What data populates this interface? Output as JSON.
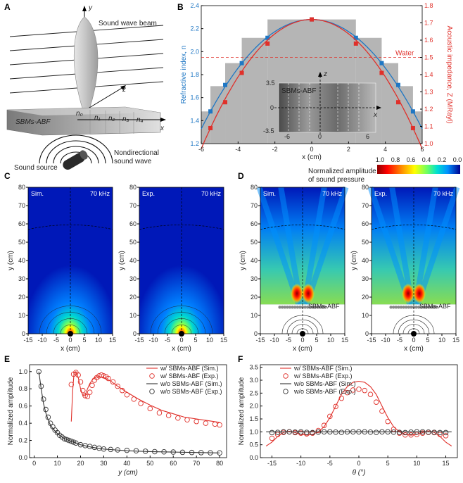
{
  "panels": {
    "A": "A",
    "B": "B",
    "C": "C",
    "D": "D",
    "E": "E",
    "F": "F"
  },
  "schematic": {
    "axis_y": "y",
    "axis_z": "z",
    "axis_x": "x",
    "beam_label": "Sound wave beam",
    "sbm_label": "SBMs-ABF",
    "n_labels": [
      "n₀",
      "n₁",
      "n₂",
      "n₃",
      "n₄"
    ],
    "nondir_label_1": "Nondirectional",
    "nondir_label_2": "sound wave",
    "source_label": "Sound source"
  },
  "colorbar": {
    "title_1": "Normalized amplitude",
    "title_2": "of sound pressure",
    "ticks": [
      "1.0",
      "0.8",
      "0.6",
      "0.4",
      "0.2",
      "0.0"
    ],
    "colors": [
      "#8b0000",
      "#ff0000",
      "#ff8c00",
      "#ffff00",
      "#7cff50",
      "#00e0c0",
      "#00a0ff",
      "#0030d0",
      "#00007a"
    ]
  },
  "map_panels": [
    {
      "id": "c1",
      "tag": "Sim.",
      "freq": "70 kHz",
      "mode": "free"
    },
    {
      "id": "c2",
      "tag": "Exp.",
      "freq": "70 kHz",
      "mode": "free"
    },
    {
      "id": "d1",
      "tag": "Sim.",
      "freq": "70 kHz",
      "mode": "sbm",
      "sbm": "SBMs-ABF"
    },
    {
      "id": "d2",
      "tag": "Exp.",
      "freq": "70 kHz",
      "mode": "sbm",
      "sbm": "SBMs-ABF"
    }
  ],
  "map_axes": {
    "x_label": "x (cm)",
    "y_label": "y (cm)",
    "x_ticks": [
      "-15",
      "-10",
      "-5",
      "0",
      "5",
      "10",
      "15"
    ],
    "y_ticks": [
      "0",
      "10",
      "20",
      "30",
      "40",
      "50",
      "60",
      "70",
      "80"
    ]
  },
  "chart_data": [
    {
      "id": "B",
      "type": "line",
      "xlabel": "x (cm)",
      "ylabel": "Refractive index, n",
      "y2label": "Acoustic impedance, Z (MRayl)",
      "xlim": [
        -6,
        6
      ],
      "ylim": [
        1.2,
        2.4
      ],
      "y2lim": [
        1.0,
        1.8
      ],
      "x_ticks": [
        -6,
        -4,
        -2,
        0,
        2,
        4,
        6
      ],
      "y_ticks": [
        1.2,
        1.4,
        1.6,
        1.8,
        2.0,
        2.2,
        2.4
      ],
      "y2_ticks": [
        1.0,
        1.1,
        1.2,
        1.3,
        1.4,
        1.5,
        1.6,
        1.7,
        1.8
      ],
      "water_label": "Water",
      "water_z": 1.5,
      "inset": {
        "title": "SBMs-ABF",
        "axis_z": "z",
        "axis_x": "x",
        "y_ticks": [
          "3.5",
          "0",
          "-3.5"
        ],
        "x_ticks": [
          "-6",
          "0",
          "6"
        ]
      },
      "steps": [
        {
          "x0": -6,
          "x1": -5.5,
          "n": 1.48
        },
        {
          "x0": -5.5,
          "x1": -4.7,
          "n": 1.7
        },
        {
          "x0": -4.7,
          "x1": -3.8,
          "n": 1.9
        },
        {
          "x0": -3.8,
          "x1": -2.4,
          "n": 2.12
        },
        {
          "x0": -2.4,
          "x1": 2.4,
          "n": 2.28
        },
        {
          "x0": 2.4,
          "x1": 3.8,
          "n": 2.12
        },
        {
          "x0": 3.8,
          "x1": 4.7,
          "n": 1.9
        },
        {
          "x0": 4.7,
          "x1": 5.5,
          "n": 1.7
        },
        {
          "x0": 5.5,
          "x1": 6,
          "n": 1.48
        }
      ],
      "series": [
        {
          "name": "Refractive index",
          "color": "#1f77c4",
          "axis": "left",
          "x": [
            -5.5,
            -4.7,
            -3.8,
            -2.4,
            0,
            2.4,
            3.8,
            4.7,
            5.5
          ],
          "values": [
            1.48,
            1.71,
            1.9,
            2.12,
            2.28,
            2.12,
            1.9,
            1.71,
            1.48
          ]
        },
        {
          "name": "Acoustic impedance",
          "color": "#e0302a",
          "axis": "right",
          "x": [
            -5.5,
            -4.7,
            -3.8,
            -2.4,
            0,
            2.4,
            3.8,
            4.7,
            5.5
          ],
          "values": [
            1.09,
            1.24,
            1.41,
            1.58,
            1.72,
            1.58,
            1.41,
            1.24,
            1.09
          ]
        }
      ]
    },
    {
      "id": "E",
      "type": "line",
      "xlabel": "y (cm)",
      "ylabel": "Normalized amplitude",
      "xlim": [
        -2,
        83
      ],
      "ylim": [
        0,
        1.08
      ],
      "x_ticks": [
        0,
        10,
        20,
        30,
        40,
        50,
        60,
        70,
        80
      ],
      "y_ticks": [
        0.0,
        0.2,
        0.4,
        0.6,
        0.8,
        1.0
      ],
      "series": [
        {
          "name": "w/ SBMs-ABF (Sim.)",
          "style": "line",
          "color": "#e0302a",
          "x": [
            16,
            16.6,
            17.2,
            18,
            19,
            20,
            21,
            22,
            23,
            24,
            25,
            26,
            27,
            28,
            30,
            33,
            36,
            40,
            45,
            50,
            55,
            60,
            65,
            70,
            75,
            80
          ],
          "values": [
            0.42,
            0.78,
            0.98,
            1.0,
            0.93,
            0.8,
            0.72,
            0.73,
            0.8,
            0.86,
            0.9,
            0.93,
            0.94,
            0.94,
            0.93,
            0.89,
            0.83,
            0.76,
            0.68,
            0.61,
            0.55,
            0.51,
            0.47,
            0.45,
            0.43,
            0.41
          ]
        },
        {
          "name": "w/ SBMs-ABF (Exp.)",
          "style": "markers",
          "color": "#e0302a",
          "x": [
            16,
            17,
            18,
            19,
            20,
            21,
            22,
            23,
            24,
            25,
            26,
            27,
            28,
            29,
            30,
            31,
            32,
            34,
            36,
            38,
            40,
            43,
            46,
            50,
            54,
            58,
            62,
            66,
            70,
            74,
            78,
            80
          ],
          "values": [
            0.85,
            0.97,
            0.99,
            0.96,
            0.88,
            0.78,
            0.72,
            0.71,
            0.76,
            0.84,
            0.9,
            0.93,
            0.95,
            0.96,
            0.95,
            0.94,
            0.92,
            0.88,
            0.83,
            0.78,
            0.73,
            0.68,
            0.63,
            0.57,
            0.52,
            0.49,
            0.46,
            0.44,
            0.42,
            0.4,
            0.39,
            0.38
          ]
        },
        {
          "name": "w/o SBMs-ABF (Sim.)",
          "style": "line",
          "color": "#333333",
          "x": [
            2,
            3,
            4,
            5,
            6,
            7,
            8,
            10,
            12,
            14,
            16,
            18,
            20,
            25,
            30,
            35,
            40,
            50,
            60,
            70,
            80
          ],
          "values": [
            1.0,
            0.8,
            0.63,
            0.52,
            0.44,
            0.38,
            0.34,
            0.28,
            0.24,
            0.21,
            0.19,
            0.17,
            0.15,
            0.12,
            0.1,
            0.09,
            0.08,
            0.07,
            0.065,
            0.06,
            0.055
          ]
        },
        {
          "name": "w/o SBMs-ABF (Exp.)",
          "style": "markers",
          "color": "#333333",
          "x": [
            2,
            3,
            4,
            5,
            6,
            7,
            8,
            9,
            10,
            11,
            12,
            13,
            14,
            15,
            16,
            17,
            18,
            20,
            22,
            24,
            26,
            28,
            30,
            33,
            36,
            40,
            44,
            48,
            52,
            56,
            60,
            64,
            68,
            72,
            76,
            80
          ],
          "values": [
            1.0,
            0.83,
            0.68,
            0.56,
            0.47,
            0.4,
            0.36,
            0.32,
            0.29,
            0.26,
            0.24,
            0.22,
            0.21,
            0.2,
            0.19,
            0.18,
            0.17,
            0.15,
            0.14,
            0.13,
            0.12,
            0.11,
            0.1,
            0.095,
            0.09,
            0.085,
            0.08,
            0.075,
            0.07,
            0.068,
            0.065,
            0.062,
            0.06,
            0.058,
            0.056,
            0.055
          ]
        }
      ]
    },
    {
      "id": "F",
      "type": "line",
      "xlabel": "θ (°)",
      "ylabel": "Normalized amplitude",
      "xlim": [
        -17,
        17
      ],
      "ylim": [
        0,
        3.6
      ],
      "x_ticks": [
        -15,
        -10,
        -5,
        0,
        5,
        10,
        15
      ],
      "y_ticks": [
        0.0,
        0.5,
        1.0,
        1.5,
        2.0,
        2.5,
        3.0,
        3.5
      ],
      "series": [
        {
          "name": "w/ SBMs-ABF (Sim.)",
          "style": "line",
          "color": "#e0302a",
          "x": [
            -16,
            -15,
            -14,
            -13,
            -12,
            -11,
            -10,
            -9,
            -8,
            -7,
            -6,
            -5,
            -4,
            -3,
            -2,
            -1,
            0,
            1,
            2,
            3,
            4,
            5,
            6,
            7,
            8,
            9,
            10,
            11,
            12,
            13,
            14,
            15,
            16
          ],
          "values": [
            0.45,
            0.6,
            0.82,
            0.98,
            1.02,
            0.97,
            0.9,
            0.87,
            0.9,
            1.0,
            1.2,
            1.55,
            2.0,
            2.45,
            2.75,
            2.92,
            2.96,
            2.92,
            2.75,
            2.45,
            2.0,
            1.55,
            1.2,
            1.0,
            0.9,
            0.87,
            0.9,
            0.97,
            1.02,
            0.98,
            0.82,
            0.6,
            0.45
          ]
        },
        {
          "name": "w/ SBMs-ABF (Exp.)",
          "style": "markers",
          "color": "#e0302a",
          "x": [
            -15,
            -14,
            -13,
            -12,
            -11,
            -10,
            -9,
            -8,
            -7,
            -6,
            -5,
            -4,
            -3,
            -2,
            -1,
            0,
            1,
            2,
            3,
            4,
            5,
            6,
            7,
            8,
            9,
            10,
            11,
            12,
            13,
            14,
            15
          ],
          "values": [
            0.75,
            0.9,
            0.98,
            1.0,
            0.97,
            0.95,
            0.92,
            0.95,
            1.05,
            1.25,
            1.6,
            1.98,
            2.3,
            2.52,
            2.62,
            2.65,
            2.6,
            2.45,
            2.15,
            1.8,
            1.4,
            1.1,
            0.95,
            0.88,
            0.88,
            0.9,
            0.95,
            0.98,
            0.97,
            0.9,
            0.85
          ]
        },
        {
          "name": "w/o SBMs-ABF (Sim.)",
          "style": "line",
          "color": "#333333",
          "x": [
            -16,
            16
          ],
          "values": [
            1.0,
            1.0
          ]
        },
        {
          "name": "w/o SBMs-ABF (Exp.)",
          "style": "markers",
          "color": "#333333",
          "x": [
            -15,
            -14,
            -13,
            -12,
            -11,
            -10,
            -9,
            -8,
            -7,
            -6,
            -5,
            -4,
            -3,
            -2,
            -1,
            0,
            1,
            2,
            3,
            4,
            5,
            6,
            7,
            8,
            9,
            10,
            11,
            12,
            13,
            14,
            15
          ],
          "values": [
            0.97,
            0.98,
            1.0,
            1.0,
            0.99,
            1.0,
            0.98,
            0.97,
            0.99,
            1.0,
            1.0,
            0.99,
            0.98,
            1.0,
            1.0,
            1.0,
            1.0,
            0.99,
            0.98,
            1.0,
            1.0,
            0.99,
            0.98,
            0.97,
            0.99,
            1.0,
            1.0,
            0.99,
            0.98,
            0.97,
            0.97
          ]
        }
      ]
    }
  ]
}
